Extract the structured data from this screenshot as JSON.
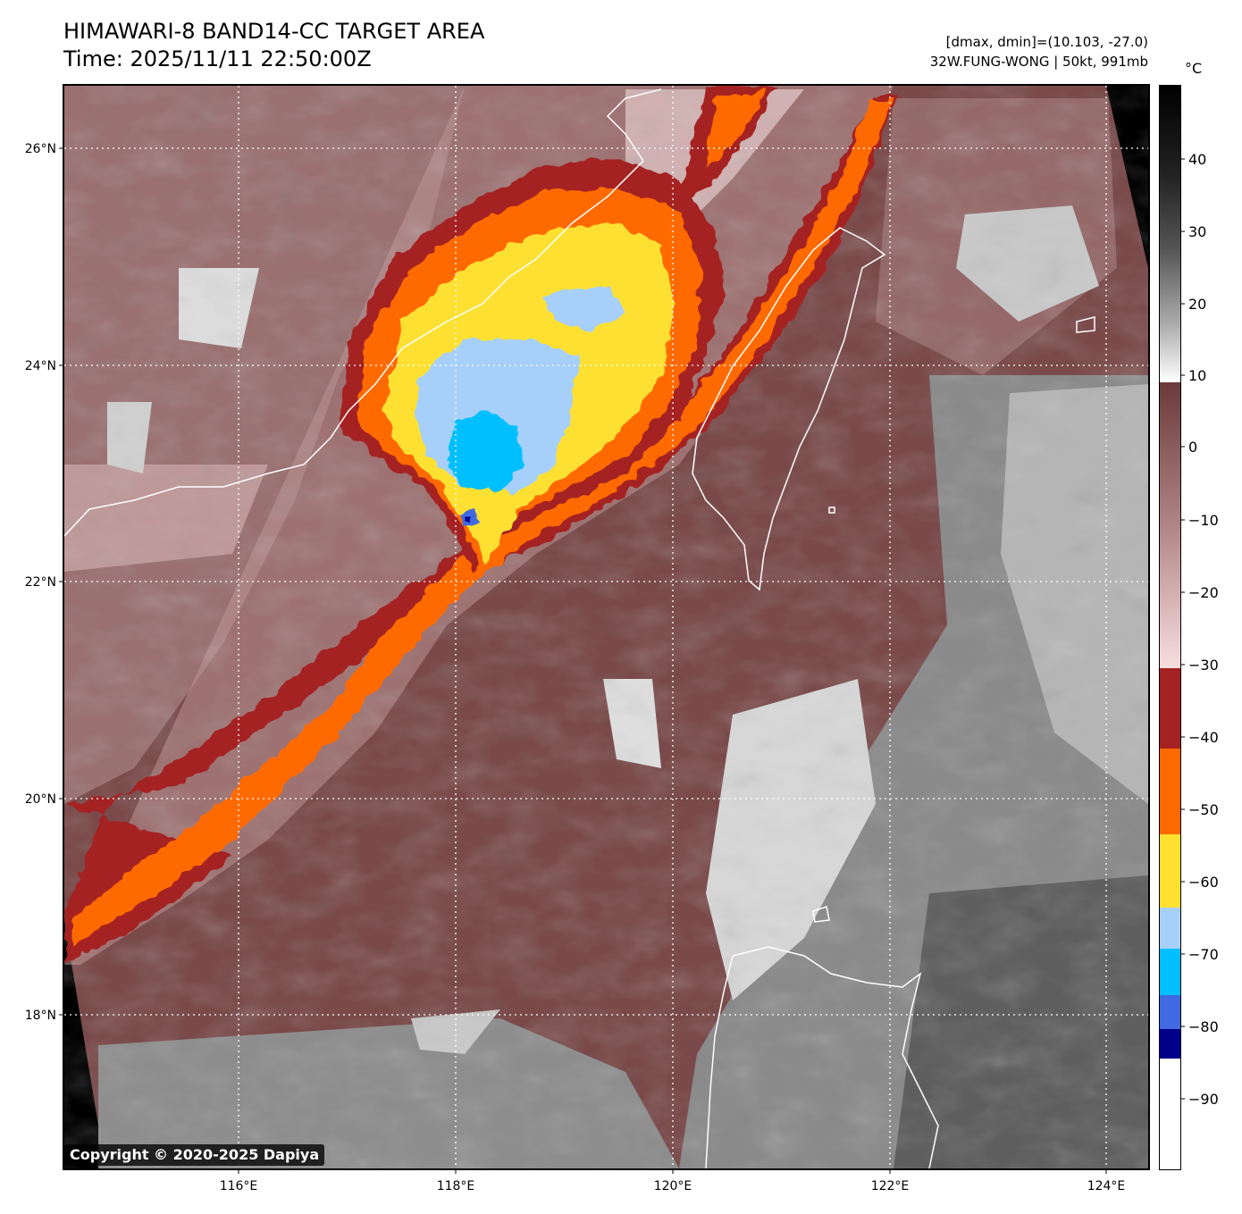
{
  "header": {
    "title_line1": "HIMAWARI-8 BAND14-CC TARGET AREA",
    "title_line2": "Time: 2025/11/11 22:50:00Z",
    "info_line1": "[dmax, dmin]=(10.103, -27.0)",
    "info_line2": "32W.FUNG-WONG | 50kt, 991mb"
  },
  "map": {
    "lon_ticks": [
      "116°E",
      "118°E",
      "120°E",
      "122°E",
      "124°E"
    ],
    "lat_ticks": [
      "26°N",
      "24°N",
      "22°N",
      "20°N",
      "18°N"
    ],
    "gridlines": "dotted white"
  },
  "colorbar": {
    "unit": "°C",
    "ticks": [
      "40",
      "30",
      "20",
      "10",
      "0",
      "−10",
      "−20",
      "−30",
      "−40",
      "−50",
      "−60",
      "−70",
      "−80",
      "−90"
    ],
    "segments": [
      {
        "range": "above 10",
        "color": "grayscale (black to white)"
      },
      {
        "range": "10 to -30",
        "color": "#6b3a3a to #f8dede"
      },
      {
        "range": "-30 to -41",
        "color": "#a52222"
      },
      {
        "range": "-41 to -53",
        "color": "#ff6a00"
      },
      {
        "range": "-53 to -63",
        "color": "#fde030"
      },
      {
        "range": "-63 to -69",
        "color": "#a6d0fa"
      },
      {
        "range": "-69 to -75",
        "color": "#00bfff"
      },
      {
        "range": "-75 to -80",
        "color": "#4169e1"
      },
      {
        "range": "-80 to -84",
        "color": "#00008b"
      },
      {
        "range": "below -84",
        "color": "#ffffff"
      }
    ]
  },
  "footer": {
    "copyright": "Copyright © 2020-2025 Dapiya"
  }
}
